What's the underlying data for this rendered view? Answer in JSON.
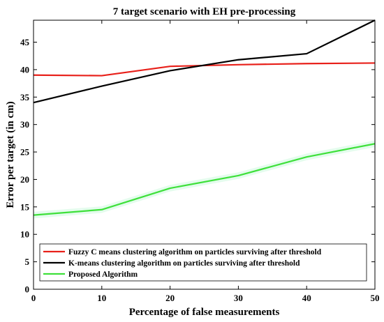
{
  "chart_data": {
    "type": "line",
    "title": "7 target scenario with EH pre-processing",
    "xlabel": "Percentage of false measurements",
    "ylabel": "Error per target (in cm)",
    "xlim": [
      0,
      50
    ],
    "ylim": [
      0,
      49
    ],
    "xticks": [
      0,
      10,
      20,
      30,
      40,
      50
    ],
    "yticks": [
      0,
      5,
      10,
      15,
      20,
      25,
      30,
      35,
      40,
      45
    ],
    "grid": false,
    "legend_position": "bottom-left",
    "series": [
      {
        "name": "Fuzzy C means clustering algorithm on particles surviving after threshold",
        "color": "#e8201a",
        "x": [
          0,
          10,
          20,
          30,
          40,
          50
        ],
        "y": [
          39.0,
          38.9,
          40.6,
          40.9,
          41.1,
          41.2
        ]
      },
      {
        "name": "K-means clustering algorithm on particles surviving after threshold",
        "color": "#000000",
        "x": [
          0,
          10,
          20,
          30,
          40,
          50
        ],
        "y": [
          34.0,
          37.0,
          39.8,
          41.8,
          42.9,
          49.0
        ]
      },
      {
        "name": "Proposed Algorithm",
        "color": "#3ee03a",
        "x": [
          0,
          10,
          20,
          30,
          40,
          50
        ],
        "y": [
          13.5,
          14.5,
          18.4,
          20.7,
          24.1,
          26.5
        ]
      }
    ]
  }
}
